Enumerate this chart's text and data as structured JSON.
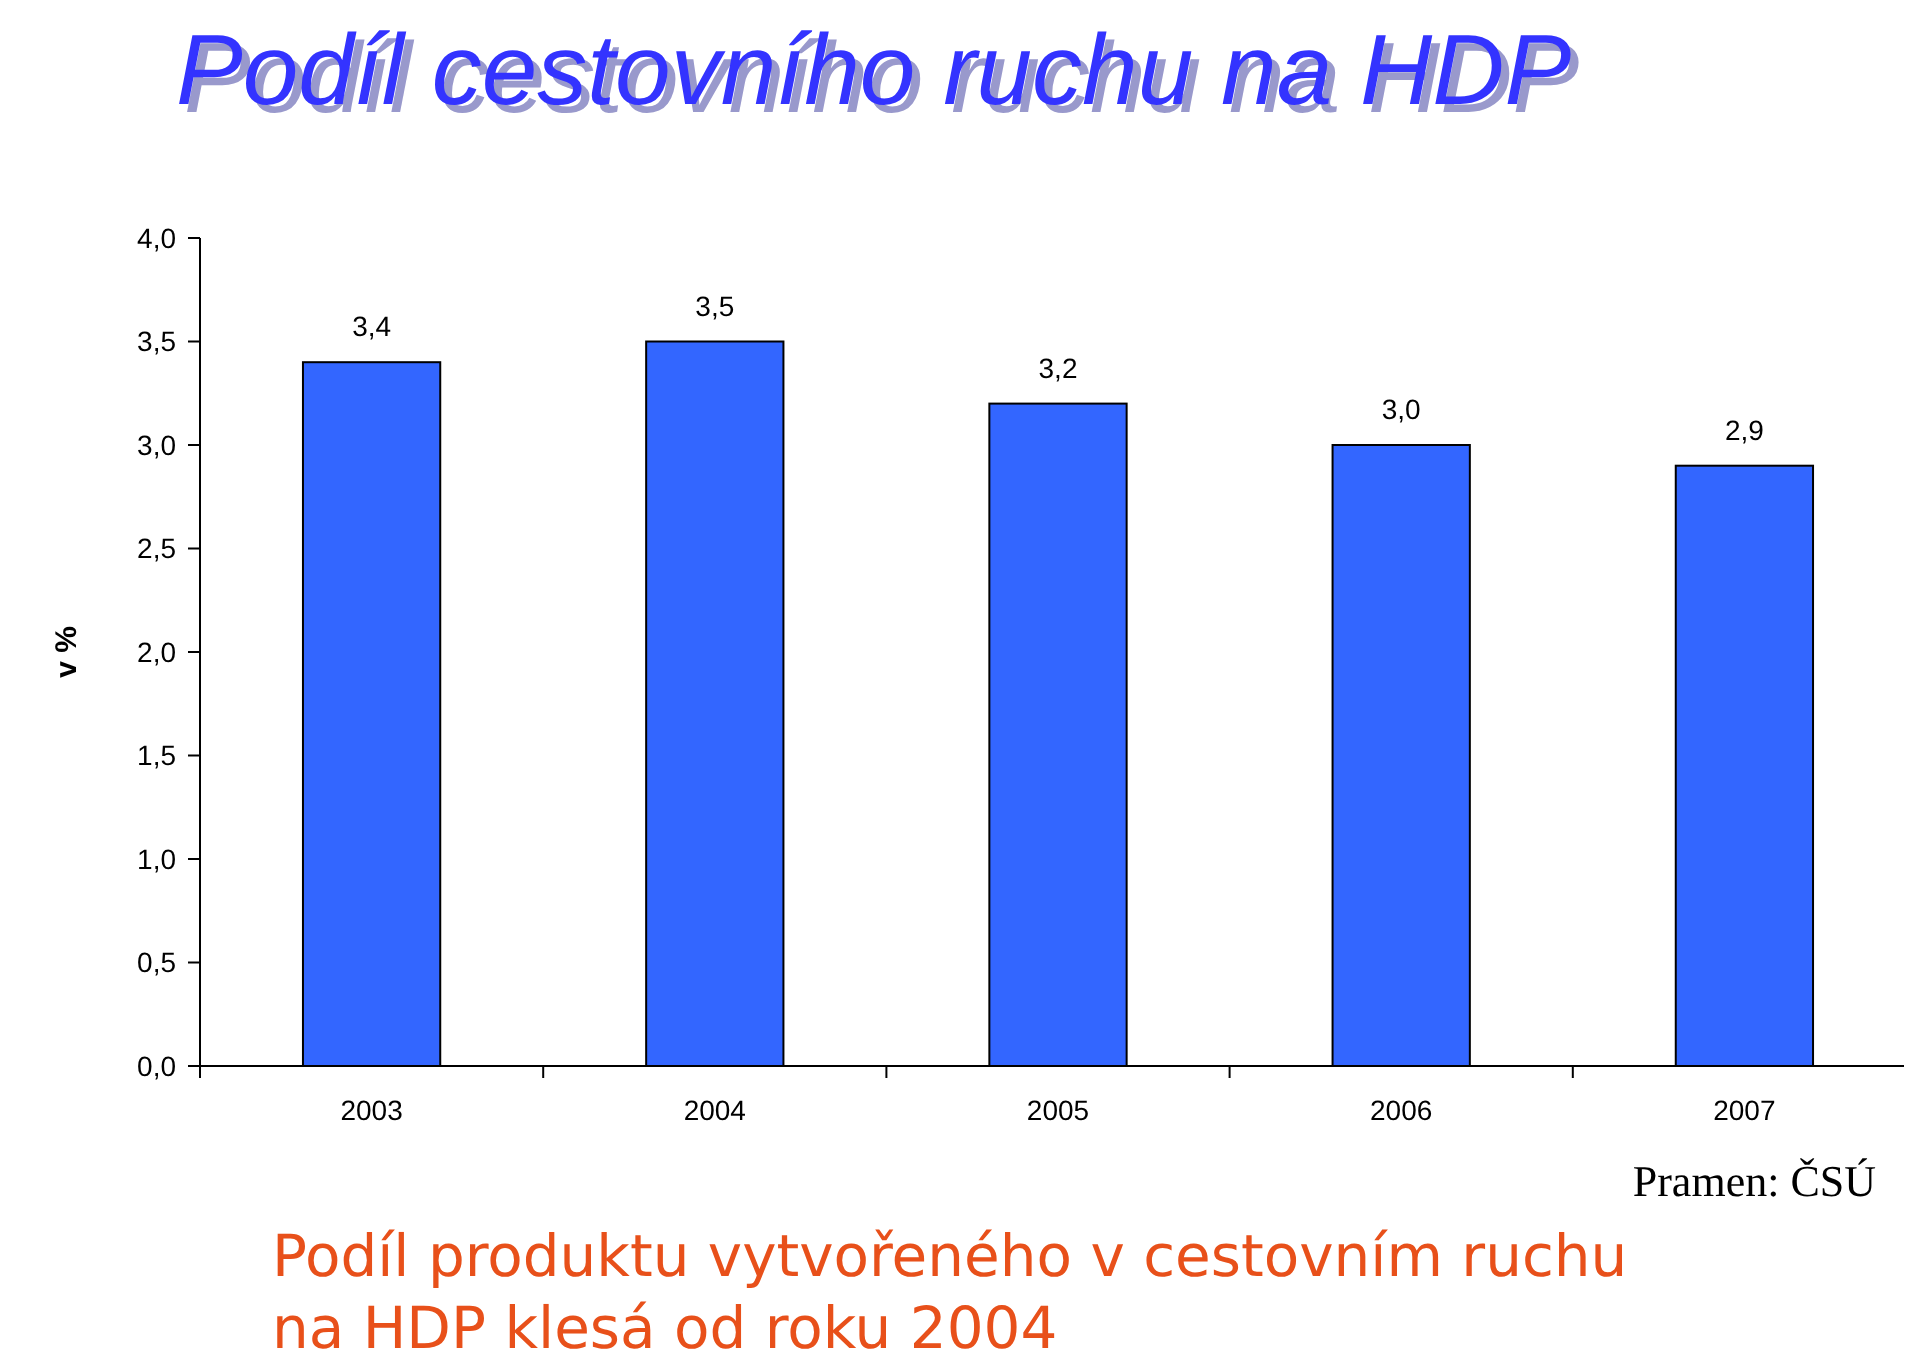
{
  "chart_data": {
    "type": "bar",
    "title": "Podíl cestovního ruchu na HDP",
    "ylabel": "v %",
    "categories": [
      "2003",
      "2004",
      "2005",
      "2006",
      "2007"
    ],
    "values": [
      3.4,
      3.5,
      3.2,
      3.0,
      2.9
    ],
    "color": "#3366ff",
    "ylim": [
      0,
      4
    ],
    "yticks": [
      {
        "value": 0,
        "label": "0,0"
      },
      {
        "value": 0.5,
        "label": "0,5"
      },
      {
        "value": 1,
        "label": "1,0"
      },
      {
        "value": 1.5,
        "label": "1,5"
      },
      {
        "value": 2,
        "label": "2,0"
      },
      {
        "value": 2.5,
        "label": "2,5"
      },
      {
        "value": 3,
        "label": "3,0"
      },
      {
        "value": 3.5,
        "label": "3,5"
      },
      {
        "value": 4,
        "label": "4,0"
      }
    ],
    "value_labels": [
      "3,4",
      "3,5",
      "3,2",
      "3,0",
      "2,9"
    ],
    "annotations": [
      "Pramen: ČSÚ",
      "Podíl produktu vytvořeného v cestovním ruchu na HDP klesá od roku 2004"
    ]
  }
}
